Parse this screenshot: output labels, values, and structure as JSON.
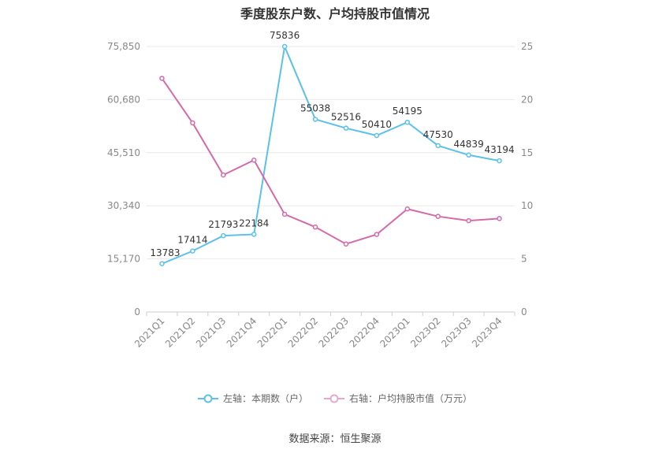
{
  "chart_data": {
    "type": "line",
    "title": "季度股东户数、户均持股市值情况",
    "categories": [
      "2021Q1",
      "2021Q2",
      "2021Q3",
      "2021Q4",
      "2022Q1",
      "2022Q2",
      "2022Q3",
      "2022Q4",
      "2023Q1",
      "2023Q2",
      "2023Q3",
      "2023Q4"
    ],
    "left_axis": {
      "min": 0,
      "max": 75850,
      "ticks": [
        "0",
        "15,170",
        "30,340",
        "45,510",
        "60,680",
        "75,850"
      ],
      "tick_values": [
        0,
        15170,
        30340,
        45510,
        60680,
        75850
      ]
    },
    "right_axis": {
      "min": 0,
      "max": 25,
      "ticks": [
        "0",
        "5",
        "10",
        "15",
        "20",
        "25"
      ],
      "tick_values": [
        0,
        5,
        10,
        15,
        20,
        25
      ]
    },
    "series": [
      {
        "name": "左轴：本期数（户）",
        "axis": "left",
        "color": "#5bc0eb",
        "values": [
          13783,
          17414,
          21793,
          22184,
          75836,
          55038,
          52516,
          50410,
          54195,
          47530,
          44839,
          43194
        ],
        "labels": [
          "13783",
          "17414",
          "21793",
          "22184",
          "75836",
          "55038",
          "52516",
          "50410",
          "54195",
          "47530",
          "44839",
          "43194"
        ]
      },
      {
        "name": "右轴：户均持股市值（万元）",
        "axis": "right",
        "color": "#d46aa9",
        "values": [
          22.0,
          17.8,
          12.9,
          14.3,
          9.2,
          8.0,
          6.4,
          7.3,
          9.7,
          9.0,
          8.6,
          8.8
        ]
      }
    ],
    "grid": true,
    "legend_position": "bottom-center"
  },
  "source_text": "数据来源：恒生聚源"
}
